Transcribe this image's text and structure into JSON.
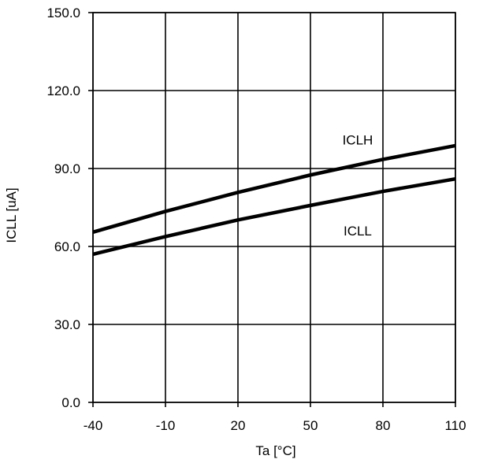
{
  "chart_data": {
    "type": "line",
    "xlabel": "Ta [°C]",
    "ylabel": "ICLL [uA]",
    "xlim": [
      -40,
      110
    ],
    "ylim": [
      0,
      150
    ],
    "x_ticks": [
      -40,
      -10,
      20,
      50,
      80,
      110
    ],
    "x_tick_labels": [
      "-40",
      "-10",
      "20",
      "50",
      "80",
      "110"
    ],
    "y_ticks": [
      0,
      30,
      60,
      90,
      120,
      150
    ],
    "y_tick_labels": [
      "0.0",
      "30.0",
      "60.0",
      "90.0",
      "120.0",
      "150.0"
    ],
    "grid": true,
    "series": [
      {
        "name": "ICLH",
        "x": [
          -40,
          -10,
          20,
          50,
          80,
          110
        ],
        "y": [
          65.5,
          73.5,
          80.8,
          87.5,
          93.5,
          98.8
        ],
        "label_at": [
          64,
          101
        ]
      },
      {
        "name": "ICLL",
        "x": [
          -40,
          -10,
          20,
          50,
          80,
          110
        ],
        "y": [
          57.0,
          63.8,
          70.2,
          75.8,
          81.2,
          86.0
        ],
        "label_at": [
          64,
          66
        ]
      }
    ]
  }
}
